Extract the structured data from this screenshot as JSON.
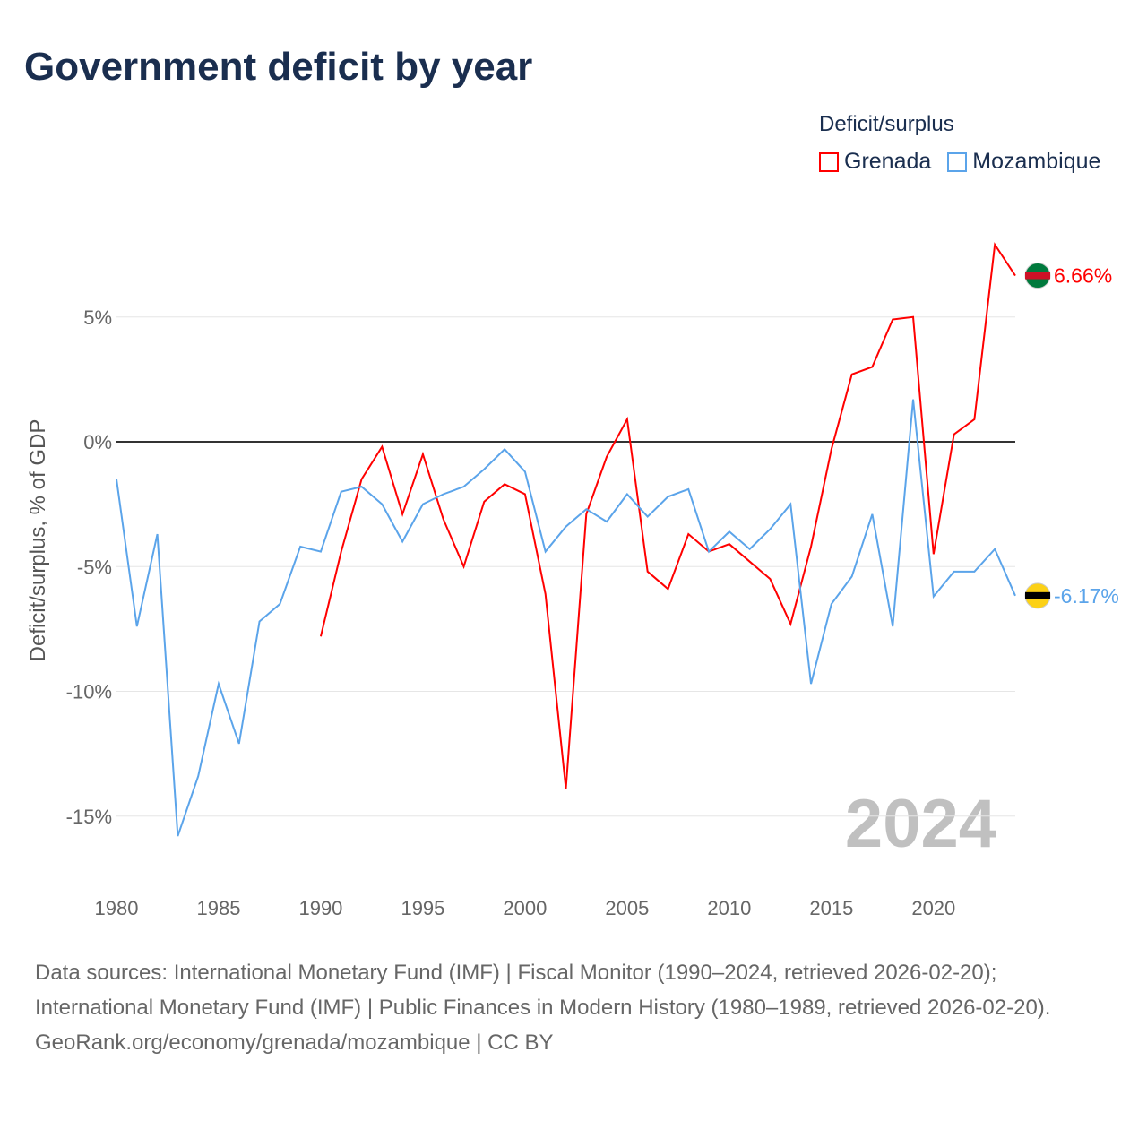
{
  "title": "Government deficit by year",
  "legend": {
    "title": "Deficit/surplus",
    "items": [
      {
        "label": "Grenada",
        "color": "#ff0000"
      },
      {
        "label": "Mozambique",
        "color": "#5ba4ea"
      }
    ]
  },
  "watermark_year": "2024",
  "footer": {
    "sources": "Data sources: International Monetary Fund (IMF) | Fiscal Monitor (1990–2024, retrieved 2026-02-20); International Monetary Fund (IMF) | Public Finances in Modern History (1980–1989, retrieved 2026-02-20).",
    "attribution": "GeoRank.org/economy/grenada/mozambique | CC BY"
  },
  "chart_data": {
    "type": "line",
    "title": "Government deficit by year",
    "xlabel": "",
    "ylabel": "Deficit/surplus, % of GDP",
    "xlim": [
      1980,
      2024
    ],
    "ylim": [
      -17,
      9
    ],
    "x_ticks": [
      1980,
      1985,
      1990,
      1995,
      2000,
      2005,
      2010,
      2015,
      2020
    ],
    "y_ticks": [
      {
        "v": 5,
        "label": "5%"
      },
      {
        "v": 0,
        "label": "0%"
      },
      {
        "v": -5,
        "label": "-5%"
      },
      {
        "v": -10,
        "label": "-10%"
      },
      {
        "v": -15,
        "label": "-15%"
      }
    ],
    "grid": true,
    "legend_position": "top-right",
    "series": [
      {
        "name": "Grenada",
        "color": "#ff0000",
        "end_label": "6.66%",
        "start": 1990,
        "values": [
          -7.8,
          -4.4,
          -1.5,
          -0.2,
          -2.9,
          -0.5,
          -3.1,
          -5.0,
          -2.4,
          -1.7,
          -2.1,
          -6.1,
          -13.9,
          -2.9,
          -0.6,
          0.9,
          -5.2,
          -5.9,
          -3.7,
          -4.4,
          -4.1,
          -4.8,
          -5.5,
          -7.3,
          -4.2,
          -0.3,
          2.7,
          3.0,
          4.9,
          5.0,
          -4.5,
          0.3,
          0.9,
          7.9,
          6.66
        ]
      },
      {
        "name": "Mozambique",
        "color": "#5ba4ea",
        "end_label": "-6.17%",
        "start": 1980,
        "values": [
          -1.5,
          -7.4,
          -3.7,
          -15.8,
          -13.4,
          -9.7,
          -12.1,
          -7.2,
          -6.5,
          -4.2,
          -4.4,
          -2.0,
          -1.8,
          -2.5,
          -4.0,
          -2.5,
          -2.1,
          -1.8,
          -1.1,
          -0.3,
          -1.2,
          -4.4,
          -3.4,
          -2.7,
          -3.2,
          -2.1,
          -3.0,
          -2.2,
          -1.9,
          -4.4,
          -3.6,
          -4.3,
          -3.5,
          -2.5,
          -9.7,
          -6.5,
          -5.4,
          -2.9,
          -7.4,
          1.7,
          -6.2,
          -5.2,
          -5.2,
          -4.3,
          -6.17
        ]
      }
    ]
  }
}
